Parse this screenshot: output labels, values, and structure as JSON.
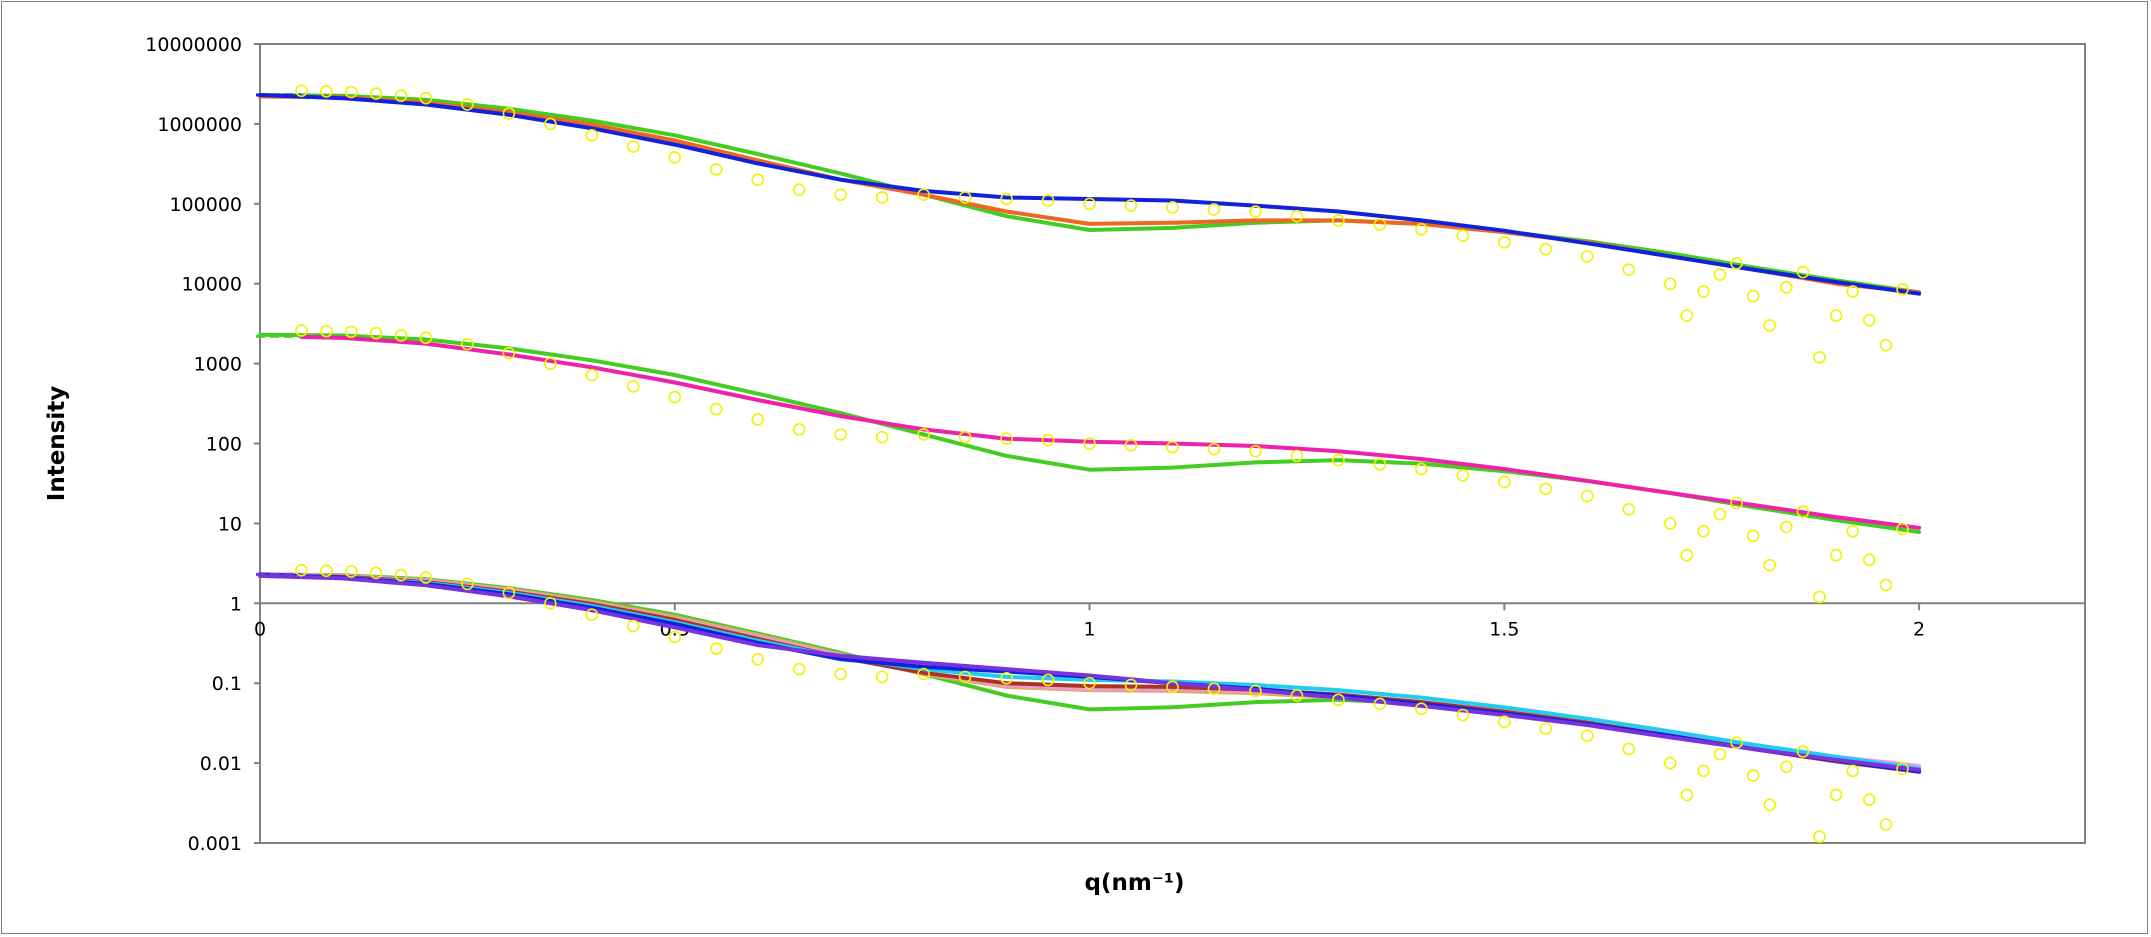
{
  "chart_data": {
    "type": "scatter",
    "title": "",
    "xlabel": "q(nm⁻¹)",
    "ylabel": "Intensity",
    "y_scale": "log",
    "xlim": [
      0,
      2.2
    ],
    "ylim": [
      0.001,
      10000000
    ],
    "x_ticks": [
      0,
      0.5,
      1,
      1.5,
      2
    ],
    "x_tick_labels": [
      "0",
      "0.5",
      "1",
      "1.5",
      "2"
    ],
    "y_ticks": [
      0.001,
      0.01,
      0.1,
      1,
      10,
      100,
      1000,
      10000,
      100000,
      1000000,
      10000000
    ],
    "y_tick_labels": [
      "0.001",
      "0.01",
      "0.1",
      "1",
      "10",
      "100",
      "1000",
      "10000",
      "100000",
      "1000000",
      "10000000"
    ],
    "x_axis_at_y": 1,
    "grid": false,
    "legend": "none",
    "colors": {
      "data_points": "#f2f200",
      "green": "#44cc22",
      "orange": "#ee6622",
      "dark_red": "#aa3322",
      "blue": "#1122dd",
      "magenta": "#ee22aa",
      "violet": "#7733dd",
      "cyan": "#22ccee",
      "pink": "#ee99dd",
      "tan": "#ddaa66"
    },
    "groups": [
      {
        "offset_decades": 6,
        "data": {
          "q": [
            0.05,
            0.08,
            0.11,
            0.14,
            0.17,
            0.2,
            0.25,
            0.3,
            0.35,
            0.4,
            0.45,
            0.5,
            0.55,
            0.6,
            0.65,
            0.7,
            0.75,
            0.8,
            0.85,
            0.9,
            0.95,
            1.0,
            1.05,
            1.1,
            1.15,
            1.2,
            1.25,
            1.3,
            1.35,
            1.4,
            1.45,
            1.5,
            1.55,
            1.6,
            1.65,
            1.7,
            1.72,
            1.74,
            1.76,
            1.78,
            1.8,
            1.82,
            1.84,
            1.86,
            1.88,
            1.9,
            1.92,
            1.94,
            1.96,
            1.98
          ],
          "I": [
            2.6,
            2.55,
            2.5,
            2.4,
            2.25,
            2.1,
            1.75,
            1.35,
            1.0,
            0.72,
            0.52,
            0.38,
            0.27,
            0.2,
            0.15,
            0.13,
            0.12,
            0.13,
            0.12,
            0.115,
            0.11,
            0.1,
            0.095,
            0.09,
            0.085,
            0.08,
            0.07,
            0.062,
            0.055,
            0.048,
            0.04,
            0.033,
            0.027,
            0.022,
            0.015,
            0.01,
            0.004,
            0.008,
            0.013,
            0.018,
            0.007,
            0.003,
            0.009,
            0.014,
            0.0012,
            0.004,
            0.008,
            0.0035,
            0.0017,
            0.0085
          ]
        },
        "series": [
          {
            "color": "#44cc22",
            "q": [
              0,
              0.1,
              0.2,
              0.3,
              0.4,
              0.5,
              0.6,
              0.7,
              0.8,
              0.9,
              1.0,
              1.1,
              1.2,
              1.3,
              1.4,
              1.5,
              1.6,
              1.7,
              1.8,
              1.9,
              2.0
            ],
            "I": [
              2.3,
              2.25,
              2.0,
              1.55,
              1.1,
              0.72,
              0.42,
              0.24,
              0.13,
              0.07,
              0.047,
              0.05,
              0.058,
              0.062,
              0.056,
              0.045,
              0.034,
              0.024,
              0.016,
              0.011,
              0.0078
            ]
          },
          {
            "color": "#ee6622",
            "q": [
              0,
              0.1,
              0.2,
              0.3,
              0.4,
              0.5,
              0.6,
              0.7,
              0.8,
              0.9,
              1.0,
              1.1,
              1.2,
              1.3,
              1.4,
              1.5,
              1.6,
              1.7,
              1.8,
              1.9,
              2.0
            ],
            "I": [
              2.2,
              2.15,
              1.85,
              1.4,
              0.98,
              0.62,
              0.35,
              0.2,
              0.13,
              0.08,
              0.056,
              0.058,
              0.062,
              0.062,
              0.056,
              0.044,
              0.033,
              0.022,
              0.015,
              0.01,
              0.0078
            ]
          },
          {
            "color": "#1122dd",
            "q": [
              0,
              0.1,
              0.2,
              0.3,
              0.4,
              0.5,
              0.6,
              0.7,
              0.8,
              0.9,
              1.0,
              1.1,
              1.2,
              1.3,
              1.4,
              1.5,
              1.6,
              1.7,
              1.8,
              1.9,
              2.0
            ],
            "I": [
              2.3,
              2.1,
              1.75,
              1.3,
              0.88,
              0.55,
              0.32,
              0.2,
              0.145,
              0.12,
              0.115,
              0.11,
              0.095,
              0.08,
              0.062,
              0.046,
              0.032,
              0.022,
              0.015,
              0.0105,
              0.0075
            ]
          }
        ]
      },
      {
        "offset_decades": 3,
        "data": {
          "q": [
            0.05,
            0.08,
            0.11,
            0.14,
            0.17,
            0.2,
            0.25,
            0.3,
            0.35,
            0.4,
            0.45,
            0.5,
            0.55,
            0.6,
            0.65,
            0.7,
            0.75,
            0.8,
            0.85,
            0.9,
            0.95,
            1.0,
            1.05,
            1.1,
            1.15,
            1.2,
            1.25,
            1.3,
            1.35,
            1.4,
            1.45,
            1.5,
            1.55,
            1.6,
            1.65,
            1.7,
            1.72,
            1.74,
            1.76,
            1.78,
            1.8,
            1.82,
            1.84,
            1.86,
            1.88,
            1.9,
            1.92,
            1.94,
            1.96,
            1.98
          ],
          "I": [
            2.6,
            2.55,
            2.5,
            2.4,
            2.25,
            2.1,
            1.75,
            1.35,
            1.0,
            0.72,
            0.52,
            0.38,
            0.27,
            0.2,
            0.15,
            0.13,
            0.12,
            0.13,
            0.12,
            0.115,
            0.11,
            0.1,
            0.095,
            0.09,
            0.085,
            0.08,
            0.07,
            0.062,
            0.055,
            0.048,
            0.04,
            0.033,
            0.027,
            0.022,
            0.015,
            0.01,
            0.004,
            0.008,
            0.013,
            0.018,
            0.007,
            0.003,
            0.009,
            0.014,
            0.0012,
            0.004,
            0.008,
            0.0035,
            0.0017,
            0.0085
          ]
        },
        "series": [
          {
            "color": "#44cc22",
            "q": [
              0,
              0.1,
              0.2,
              0.3,
              0.4,
              0.5,
              0.6,
              0.7,
              0.8,
              0.9,
              1.0,
              1.1,
              1.2,
              1.3,
              1.4,
              1.5,
              1.6,
              1.7,
              1.8,
              1.9,
              2.0
            ],
            "I": [
              2.3,
              2.25,
              2.0,
              1.55,
              1.1,
              0.72,
              0.42,
              0.24,
              0.13,
              0.07,
              0.047,
              0.05,
              0.058,
              0.062,
              0.056,
              0.045,
              0.034,
              0.024,
              0.016,
              0.011,
              0.0078
            ]
          },
          {
            "color": "#ee22aa",
            "q": [
              0.05,
              0.1,
              0.2,
              0.3,
              0.4,
              0.5,
              0.6,
              0.7,
              0.8,
              0.9,
              1.0,
              1.1,
              1.2,
              1.3,
              1.4,
              1.5,
              1.6,
              1.7,
              1.8,
              1.9,
              2.0
            ],
            "I": [
              2.15,
              2.1,
              1.78,
              1.3,
              0.9,
              0.58,
              0.35,
              0.22,
              0.15,
              0.115,
              0.105,
              0.1,
              0.093,
              0.08,
              0.064,
              0.048,
              0.034,
              0.024,
              0.017,
              0.012,
              0.0088
            ]
          }
        ]
      },
      {
        "offset_decades": 0,
        "data": {
          "q": [
            0.05,
            0.08,
            0.11,
            0.14,
            0.17,
            0.2,
            0.25,
            0.3,
            0.35,
            0.4,
            0.45,
            0.5,
            0.55,
            0.6,
            0.65,
            0.7,
            0.75,
            0.8,
            0.85,
            0.9,
            0.95,
            1.0,
            1.05,
            1.1,
            1.15,
            1.2,
            1.25,
            1.3,
            1.35,
            1.4,
            1.45,
            1.5,
            1.55,
            1.6,
            1.65,
            1.7,
            1.72,
            1.74,
            1.76,
            1.78,
            1.8,
            1.82,
            1.84,
            1.86,
            1.88,
            1.9,
            1.92,
            1.94,
            1.96,
            1.98
          ],
          "I": [
            2.6,
            2.55,
            2.5,
            2.4,
            2.25,
            2.1,
            1.75,
            1.35,
            1.0,
            0.72,
            0.52,
            0.38,
            0.27,
            0.2,
            0.15,
            0.13,
            0.12,
            0.13,
            0.12,
            0.115,
            0.11,
            0.1,
            0.095,
            0.09,
            0.085,
            0.08,
            0.07,
            0.062,
            0.055,
            0.048,
            0.04,
            0.033,
            0.027,
            0.022,
            0.015,
            0.01,
            0.004,
            0.008,
            0.013,
            0.018,
            0.007,
            0.003,
            0.009,
            0.014,
            0.0012,
            0.004,
            0.008,
            0.0035,
            0.0017,
            0.0085
          ]
        },
        "series": [
          {
            "color": "#44cc22",
            "q": [
              0,
              0.1,
              0.2,
              0.3,
              0.4,
              0.5,
              0.6,
              0.7,
              0.8,
              0.9,
              1.0,
              1.1,
              1.2,
              1.3,
              1.4,
              1.5,
              1.6,
              1.7,
              1.8,
              1.9,
              2.0
            ],
            "I": [
              2.3,
              2.25,
              2.0,
              1.55,
              1.1,
              0.72,
              0.42,
              0.24,
              0.13,
              0.07,
              0.047,
              0.05,
              0.058,
              0.062,
              0.056,
              0.045,
              0.034,
              0.024,
              0.016,
              0.011,
              0.0078
            ]
          },
          {
            "color": "#ddaa66",
            "q": [
              0,
              0.1,
              0.2,
              0.3,
              0.4,
              0.5,
              0.6,
              0.7,
              0.8,
              0.9,
              1.0,
              1.1,
              1.2,
              1.3,
              1.4,
              1.5,
              1.6,
              1.7,
              1.8,
              1.9,
              2.0
            ],
            "I": [
              2.3,
              2.2,
              1.95,
              1.5,
              1.05,
              0.68,
              0.4,
              0.23,
              0.13,
              0.09,
              0.082,
              0.08,
              0.075,
              0.066,
              0.055,
              0.043,
              0.032,
              0.022,
              0.015,
              0.011,
              0.0085
            ]
          },
          {
            "color": "#ee99dd",
            "q": [
              0,
              0.1,
              0.2,
              0.3,
              0.4,
              0.5,
              0.6,
              0.7,
              0.8,
              0.9,
              1.0,
              1.1,
              1.2,
              1.3,
              1.4,
              1.5,
              1.6,
              1.7,
              1.8,
              1.9,
              2.0
            ],
            "I": [
              2.3,
              2.2,
              1.9,
              1.45,
              1.0,
              0.64,
              0.38,
              0.22,
              0.135,
              0.095,
              0.085,
              0.085,
              0.08,
              0.07,
              0.058,
              0.045,
              0.034,
              0.024,
              0.017,
              0.012,
              0.0092
            ]
          },
          {
            "color": "#aa3322",
            "q": [
              0,
              0.1,
              0.2,
              0.3,
              0.4,
              0.5,
              0.6,
              0.7,
              0.8,
              0.9,
              1.0,
              1.1,
              1.2,
              1.3,
              1.4,
              1.5,
              1.6,
              1.7,
              1.8,
              1.9,
              2.0
            ],
            "I": [
              2.2,
              2.15,
              1.85,
              1.4,
              0.98,
              0.62,
              0.36,
              0.21,
              0.135,
              0.1,
              0.092,
              0.09,
              0.083,
              0.072,
              0.058,
              0.044,
              0.032,
              0.022,
              0.015,
              0.0105,
              0.0078
            ]
          },
          {
            "color": "#22ccee",
            "q": [
              0,
              0.1,
              0.2,
              0.3,
              0.4,
              0.5,
              0.6,
              0.7,
              0.8,
              0.9,
              1.0,
              1.1,
              1.2,
              1.3,
              1.4,
              1.5,
              1.6,
              1.7,
              1.8,
              1.9,
              2.0
            ],
            "I": [
              2.2,
              2.1,
              1.8,
              1.35,
              0.93,
              0.58,
              0.34,
              0.21,
              0.15,
              0.12,
              0.11,
              0.105,
              0.095,
              0.082,
              0.066,
              0.05,
              0.036,
              0.025,
              0.017,
              0.012,
              0.0085
            ]
          },
          {
            "color": "#1122dd",
            "q": [
              0,
              0.1,
              0.2,
              0.3,
              0.4,
              0.5,
              0.6,
              0.7,
              0.8,
              0.9,
              1.0,
              1.1,
              1.2,
              1.3,
              1.4,
              1.5,
              1.6,
              1.7,
              1.8,
              1.9,
              2.0
            ],
            "I": [
              2.3,
              2.1,
              1.75,
              1.3,
              0.88,
              0.55,
              0.32,
              0.2,
              0.16,
              0.14,
              0.12,
              0.1,
              0.085,
              0.07,
              0.055,
              0.042,
              0.031,
              0.022,
              0.015,
              0.0108,
              0.0078
            ]
          },
          {
            "color": "#7733dd",
            "q": [
              0,
              0.1,
              0.2,
              0.3,
              0.4,
              0.5,
              0.6,
              0.7,
              0.8,
              0.9,
              1.0,
              1.1,
              1.2,
              1.3,
              1.4,
              1.5,
              1.6,
              1.7,
              1.8,
              1.9,
              2.0
            ],
            "I": [
              2.2,
              2.05,
              1.68,
              1.22,
              0.82,
              0.5,
              0.3,
              0.22,
              0.18,
              0.15,
              0.125,
              0.1,
              0.082,
              0.066,
              0.052,
              0.04,
              0.03,
              0.021,
              0.015,
              0.011,
              0.0082
            ]
          }
        ]
      }
    ],
    "extrapolation_dashes": [
      {
        "color": "#1122dd",
        "q": [
          0,
          0.05
        ],
        "I": [
          2300000,
          2300000
        ]
      },
      {
        "color": "#44cc22",
        "q": [
          0,
          0.05
        ],
        "I": [
          2200,
          2200
        ]
      },
      {
        "color": "#7733dd",
        "q": [
          0,
          0.05
        ],
        "I": [
          2.3,
          2.3
        ]
      }
    ]
  }
}
